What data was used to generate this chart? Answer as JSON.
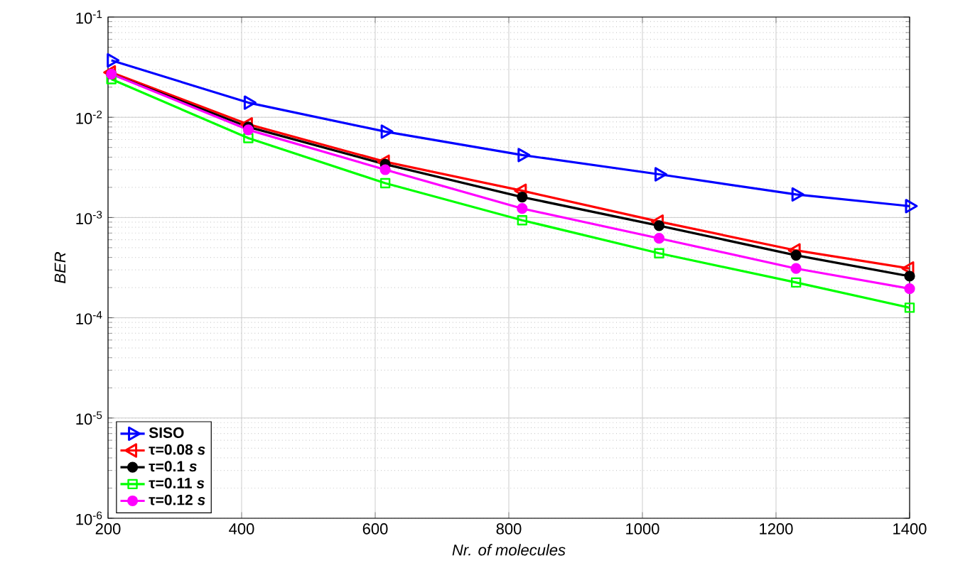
{
  "chart_data": {
    "type": "line",
    "xlabel": "Nr. of molecules",
    "ylabel": "BER",
    "x": [
      205,
      410,
      615,
      820,
      1025,
      1230,
      1400
    ],
    "xlim": [
      200,
      1400
    ],
    "xticks": [
      200,
      400,
      600,
      800,
      1000,
      1200,
      1400
    ],
    "log": "y",
    "ylim": [
      1e-06,
      0.1
    ],
    "yticks": [
      {
        "value": 1e-06,
        "label": "10$^{-6}$"
      },
      {
        "value": 1e-05,
        "label": "10$^{-5}$"
      },
      {
        "value": 0.0001,
        "label": "10$^{-4}$"
      },
      {
        "value": 0.001,
        "label": "10$^{-3}$"
      },
      {
        "value": 0.01,
        "label": "10$^{-2}$"
      },
      {
        "value": 0.1,
        "label": "10$^{-1}$"
      }
    ],
    "grid": true,
    "legend": "bottom left",
    "line_style": "solid",
    "series": [
      {
        "name": "SISO",
        "color": "#0000ff",
        "marker": "triangle",
        "values": [
          0.037,
          0.014,
          0.0072,
          0.0042,
          0.0027,
          0.0017,
          0.0013
        ]
      },
      {
        "name": "τ=0.08 *s*",
        "color": "#ff0000",
        "marker": "triangle",
        "values": [
          0.028,
          0.0085,
          0.0036,
          0.00185,
          0.00091,
          0.00047,
          0.00031
        ]
      },
      {
        "name": "τ=0.1 *s*",
        "color": "#000000",
        "marker": "circle",
        "values": [
          0.027,
          0.008,
          0.0034,
          0.0016,
          0.00083,
          0.00042,
          0.00026
        ]
      },
      {
        "name": "τ=0.11 *s*",
        "color": "#00ff00",
        "marker": "square",
        "values": [
          0.024,
          0.0062,
          0.0022,
          0.00094,
          0.00044,
          0.000225,
          0.000126
        ]
      },
      {
        "name": "τ=0.12 *s*",
        "color": "#ff00ff",
        "marker": "circle",
        "values": [
          0.027,
          0.0075,
          0.003,
          0.00123,
          0.00062,
          0.00031,
          0.000195
        ]
      }
    ]
  }
}
